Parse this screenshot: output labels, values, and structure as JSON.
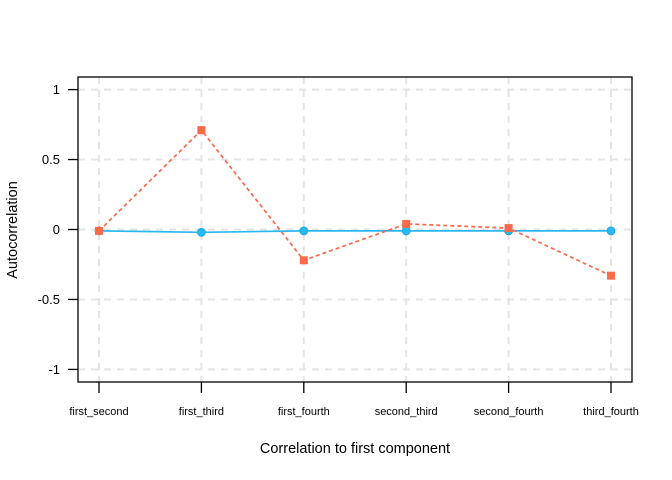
{
  "figure": {
    "background_color": "#ffffff",
    "border_color": "#000000",
    "text_color": "#000000"
  },
  "chart_data": {
    "type": "line",
    "title": "",
    "xlabel": "Correlation to first component",
    "ylabel": "Autocorrelation",
    "categories": [
      "first_second",
      "first_third",
      "first_fourth",
      "second_third",
      "second_fourth",
      "third_fourth"
    ],
    "series": [
      {
        "name": "circle-series",
        "marker": "circle",
        "line_style": "solid",
        "color": "#29B8F0",
        "values": [
          -0.01,
          -0.02,
          -0.01,
          -0.01,
          -0.01,
          -0.01
        ]
      },
      {
        "name": "square-series",
        "marker": "square",
        "line_style": "dashed",
        "color": "#FC6A4A",
        "values": [
          -0.01,
          0.71,
          -0.22,
          0.04,
          0.01,
          -0.33
        ]
      }
    ],
    "y_ticks": [
      -1,
      -0.5,
      0,
      0.5,
      1
    ],
    "y_tick_labels": [
      "-1",
      "-0.5",
      "0",
      "0.5",
      "1"
    ],
    "ylim": [
      -1.09,
      1.09
    ],
    "grid": "dashed",
    "grid_color": "#E4E4E4",
    "legend": "none"
  }
}
